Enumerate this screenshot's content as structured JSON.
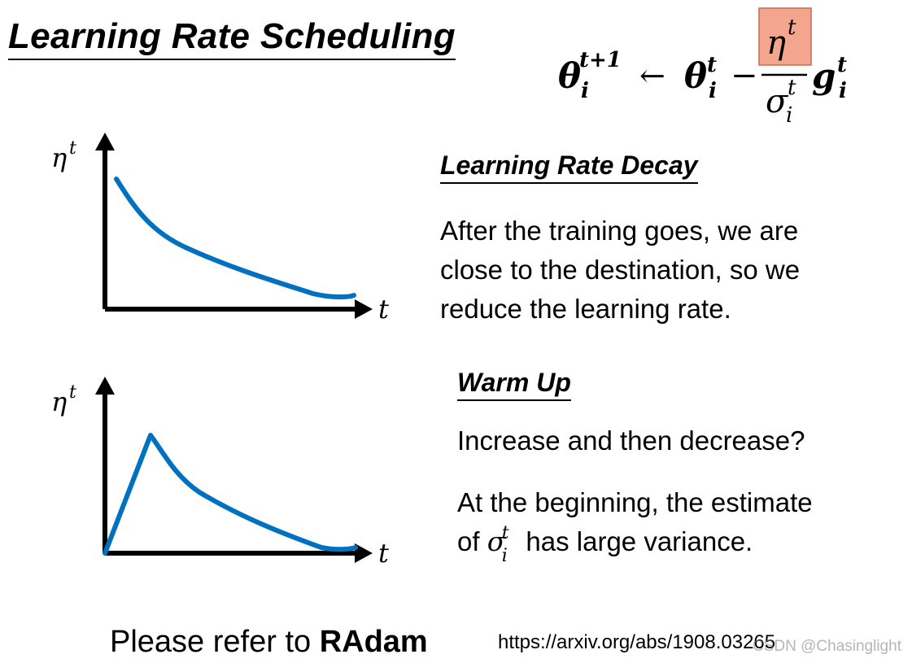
{
  "title": "Learning Rate Scheduling",
  "formula": {
    "lhs": "θ",
    "lhs_sub": "i",
    "lhs_sup": "t+1",
    "arrow": "←",
    "theta": "θ",
    "theta_sub": "i",
    "theta_sup": "t",
    "minus": "−",
    "numerator": "η",
    "numerator_sup": "t",
    "denominator": "σ",
    "denominator_sub": "i",
    "denominator_sup": "t",
    "g": "g",
    "g_sub": "i",
    "g_sup": "t",
    "highlight_color": "#f4a58e"
  },
  "graph_decay": {
    "y_label": "η",
    "y_label_sup": "t",
    "x_label": "t",
    "curve_color": "#0070c0"
  },
  "graph_warmup": {
    "y_label": "η",
    "y_label_sup": "t",
    "x_label": "t",
    "curve_color": "#0070c0"
  },
  "decay": {
    "heading": "Learning Rate Decay",
    "lines": [
      "After the training goes, we are",
      "close to the destination, so we",
      "reduce the learning rate."
    ]
  },
  "warmup": {
    "heading": "Warm Up",
    "line1": "Increase and then decrease?",
    "line2": "At the beginning, the estimate",
    "line3_prefix": "of ",
    "line3_sigma": "σ",
    "line3_sub": "i",
    "line3_sup": "t",
    "line3_suffix": " has large variance."
  },
  "footer": {
    "refer_prefix": "Please refer to ",
    "refer_bold": "RAdam",
    "url": "https://arxiv.org/abs/1908.03265",
    "watermark": "CSDN @Chasinglight"
  }
}
